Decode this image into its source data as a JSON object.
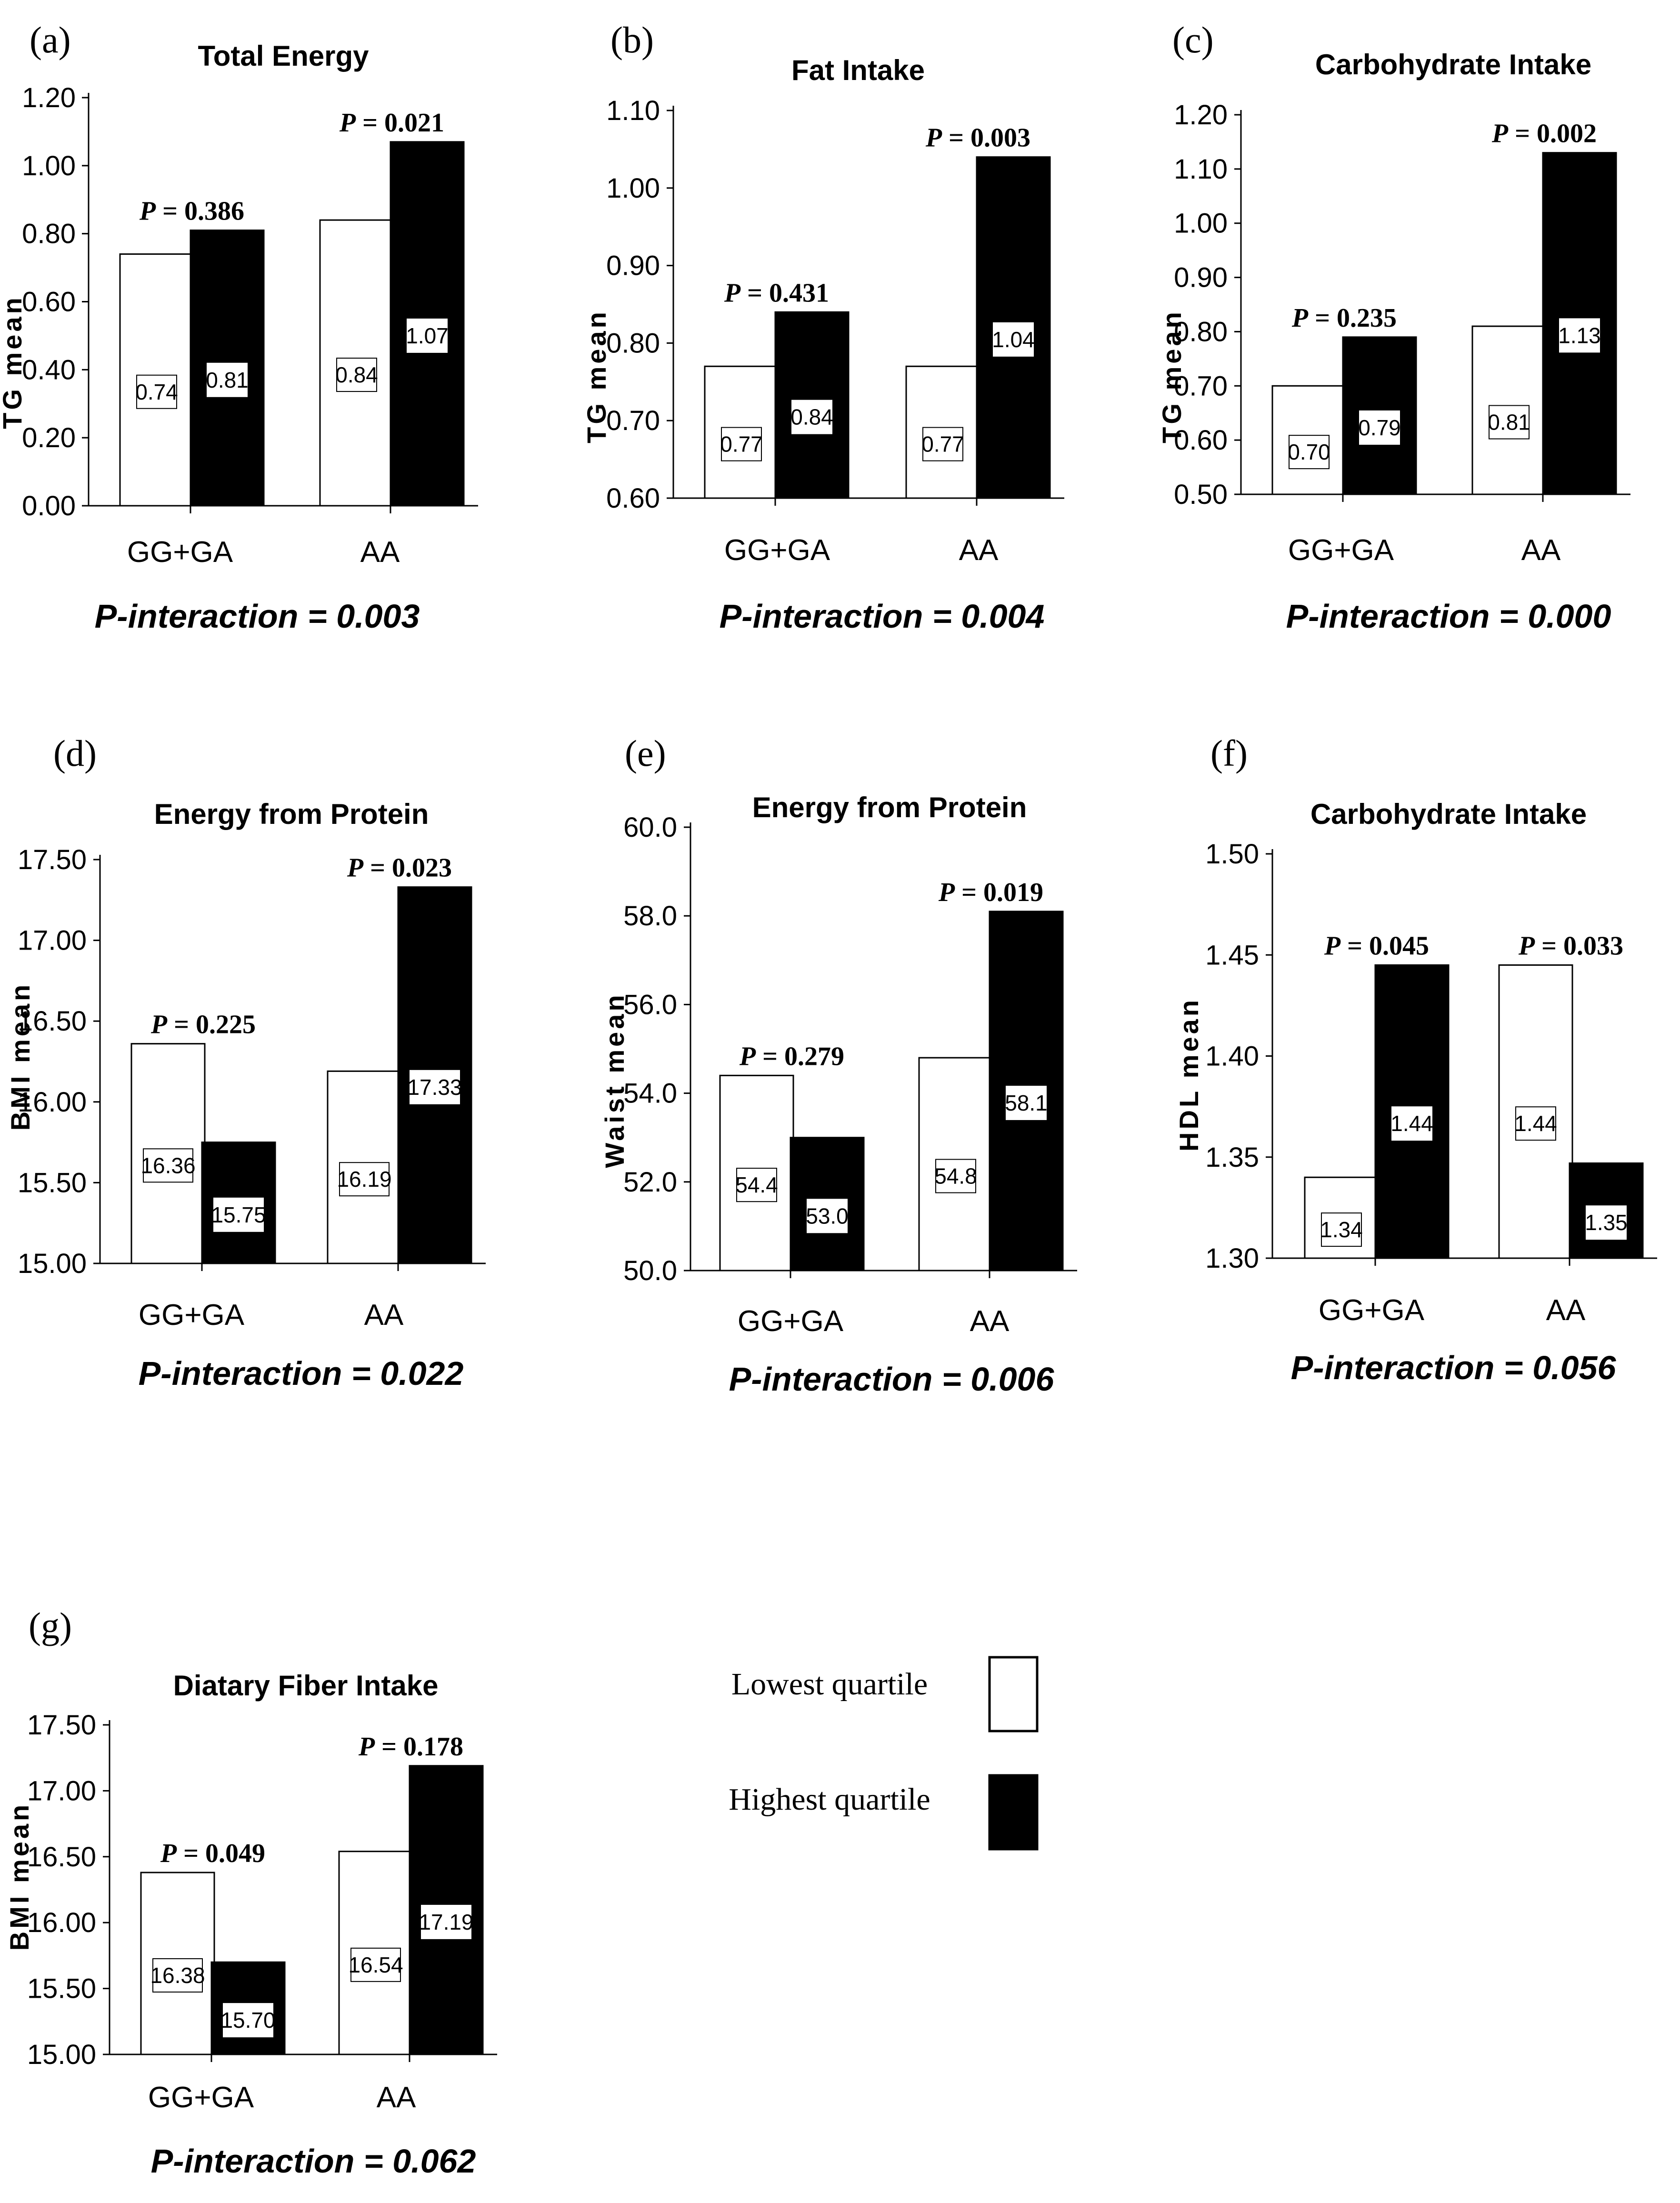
{
  "series_names": [
    "Lowest quartile",
    "Highest quartile"
  ],
  "colors": {
    "lowest": "#ffffff",
    "highest": "#000000",
    "stroke": "#000000"
  },
  "legend": {
    "lowest_label": "Lowest quartile",
    "highest_label": "Highest quartile"
  },
  "chart_data": [
    {
      "panel": "(a)",
      "type": "bar",
      "title": "Total Energy",
      "ylabel": "TG  mean",
      "categories": [
        "GG+GA",
        "AA"
      ],
      "ylim": [
        0.0,
        1.2
      ],
      "yticks": [
        "0.00",
        "0.20",
        "0.40",
        "0.60",
        "0.80",
        "1.00",
        "1.20"
      ],
      "series": [
        {
          "name": "Lowest quartile",
          "values": [
            0.74,
            0.84
          ],
          "labels": [
            "0.74",
            "0.84"
          ]
        },
        {
          "name": "Highest quartile",
          "values": [
            0.81,
            1.07
          ],
          "labels": [
            "0.81",
            "1.07"
          ]
        }
      ],
      "p_values": [
        "0.386",
        "0.021"
      ],
      "interaction": "P-interaction = 0.003"
    },
    {
      "panel": "(b)",
      "type": "bar",
      "title": "Fat Intake",
      "ylabel": "TG  mean",
      "categories": [
        "GG+GA",
        "AA"
      ],
      "ylim": [
        0.6,
        1.1
      ],
      "yticks": [
        "0.60",
        "0.70",
        "0.80",
        "0.90",
        "1.00",
        "1.10"
      ],
      "series": [
        {
          "name": "Lowest quartile",
          "values": [
            0.77,
            0.77
          ],
          "labels": [
            "0.77",
            "0.77"
          ]
        },
        {
          "name": "Highest quartile",
          "values": [
            0.84,
            1.04
          ],
          "labels": [
            "0.84",
            "1.04"
          ]
        }
      ],
      "p_values": [
        "0.431",
        "0.003"
      ],
      "interaction": "P-interaction = 0.004"
    },
    {
      "panel": "(c)",
      "type": "bar",
      "title": "Carbohydrate Intake",
      "ylabel": "TG  mean",
      "categories": [
        "GG+GA",
        "AA"
      ],
      "ylim": [
        0.5,
        1.2
      ],
      "yticks": [
        "0.50",
        "0.60",
        "0.70",
        "0.80",
        "0.90",
        "1.00",
        "1.10",
        "1.20"
      ],
      "series": [
        {
          "name": "Lowest quartile",
          "values": [
            0.7,
            0.81
          ],
          "labels": [
            "0.70",
            "0.81"
          ]
        },
        {
          "name": "Highest quartile",
          "values": [
            0.79,
            1.13
          ],
          "labels": [
            "0.79",
            "1.13"
          ]
        }
      ],
      "p_values": [
        "0.235",
        "0.002"
      ],
      "interaction": "P-interaction = 0.000"
    },
    {
      "panel": "(d)",
      "type": "bar",
      "title": "Energy from Protein",
      "ylabel": "BMI  mean",
      "categories": [
        "GG+GA",
        "AA"
      ],
      "ylim": [
        15.0,
        17.5
      ],
      "yticks": [
        "15.00",
        "15.50",
        "16.00",
        "16.50",
        "17.00",
        "17.50"
      ],
      "series": [
        {
          "name": "Lowest quartile",
          "values": [
            16.36,
            16.19
          ],
          "labels": [
            "16.36",
            "16.19"
          ]
        },
        {
          "name": "Highest quartile",
          "values": [
            15.75,
            17.33
          ],
          "labels": [
            "15.75",
            "17.33"
          ]
        }
      ],
      "p_values": [
        "0.225",
        "0.023"
      ],
      "interaction": "P-interaction = 0.022"
    },
    {
      "panel": "(e)",
      "type": "bar",
      "title": "Energy from Protein",
      "ylabel": "Waist  mean",
      "categories": [
        "GG+GA",
        "AA"
      ],
      "ylim": [
        50.0,
        60.0
      ],
      "yticks": [
        "50.0",
        "52.0",
        "54.0",
        "56.0",
        "58.0",
        "60.0"
      ],
      "series": [
        {
          "name": "Lowest quartile",
          "values": [
            54.4,
            54.8
          ],
          "labels": [
            "54.4",
            "54.8"
          ]
        },
        {
          "name": "Highest quartile",
          "values": [
            53.0,
            58.1
          ],
          "labels": [
            "53.0",
            "58.1"
          ]
        }
      ],
      "p_values": [
        "0.279",
        "0.019"
      ],
      "interaction": "P-interaction = 0.006"
    },
    {
      "panel": "(f)",
      "type": "bar",
      "title": "Carbohydrate Intake",
      "ylabel": "HDL  mean",
      "categories": [
        "GG+GA",
        "AA"
      ],
      "ylim": [
        1.3,
        1.5
      ],
      "yticks": [
        "1.30",
        "1.35",
        "1.40",
        "1.45",
        "1.50"
      ],
      "series": [
        {
          "name": "Lowest quartile",
          "values": [
            1.34,
            1.445
          ],
          "labels": [
            "1.34",
            "1.44"
          ]
        },
        {
          "name": "Highest quartile",
          "values": [
            1.445,
            1.347
          ],
          "labels": [
            "1.44",
            "1.35"
          ]
        }
      ],
      "p_values": [
        "0.045",
        "0.033"
      ],
      "interaction": "P-interaction = 0.056"
    },
    {
      "panel": "(g)",
      "type": "bar",
      "title": "Diatary Fiber Intake",
      "ylabel": "BMI  mean",
      "categories": [
        "GG+GA",
        "AA"
      ],
      "ylim": [
        15.0,
        17.5
      ],
      "yticks": [
        "15.00",
        "15.50",
        "16.00",
        "16.50",
        "17.00",
        "17.50"
      ],
      "series": [
        {
          "name": "Lowest quartile",
          "values": [
            16.38,
            16.54
          ],
          "labels": [
            "16.38",
            "16.54"
          ]
        },
        {
          "name": "Highest quartile",
          "values": [
            15.7,
            17.19
          ],
          "labels": [
            "15.70",
            "17.19"
          ]
        }
      ],
      "p_values": [
        "0.049",
        "0.178"
      ],
      "interaction": "P-interaction = 0.062"
    }
  ]
}
